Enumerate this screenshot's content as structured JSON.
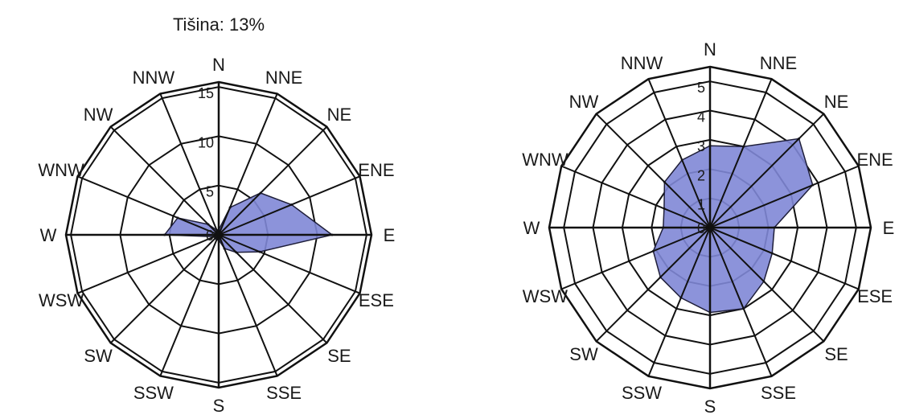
{
  "chart_data": [
    {
      "type": "radar",
      "title": "Tišina: 13%",
      "directions": [
        "N",
        "NNE",
        "NE",
        "ENE",
        "E",
        "ESE",
        "SE",
        "SSE",
        "S",
        "SSW",
        "SW",
        "WSW",
        "W",
        "WNW",
        "NW",
        "NNW"
      ],
      "rings": [
        5,
        10,
        15
      ],
      "tick_labels": [
        "0",
        "5",
        "10",
        "15"
      ],
      "rmax": 15.5,
      "values": [
        0.5,
        3.0,
        6.0,
        8.0,
        11.5,
        4.5,
        2.5,
        1.5,
        0.5,
        0.5,
        0.5,
        0.5,
        5.5,
        4.5,
        1.5,
        0.5
      ],
      "fill_color": "#8087d6",
      "stroke_color": "#1f1f3a"
    },
    {
      "type": "radar",
      "title": "",
      "directions": [
        "N",
        "NNE",
        "NE",
        "ENE",
        "E",
        "ESE",
        "SE",
        "SSE",
        "S",
        "SSW",
        "SW",
        "WSW",
        "W",
        "WNW",
        "NW",
        "NNW"
      ],
      "rings": [
        1,
        2,
        3,
        4,
        5
      ],
      "tick_labels": [
        "0",
        "1",
        "2",
        "3",
        "4",
        "5"
      ],
      "rmax": 5.5,
      "values": [
        2.8,
        3.0,
        4.3,
        3.8,
        2.2,
        2.3,
        2.6,
        3.0,
        2.9,
        2.6,
        2.4,
        2.1,
        1.6,
        1.7,
        2.2,
        2.5
      ],
      "fill_color": "#8087d6",
      "stroke_color": "#1f1f3a"
    }
  ]
}
